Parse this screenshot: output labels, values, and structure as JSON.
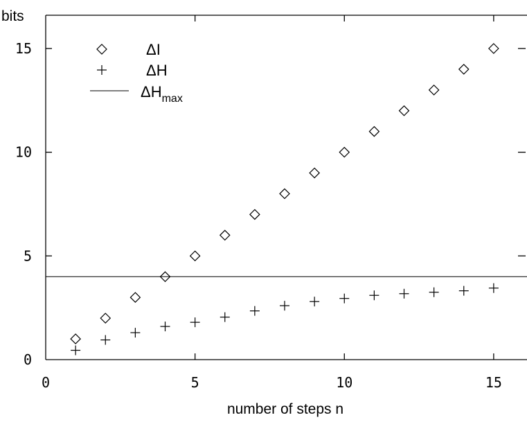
{
  "chart_data": {
    "type": "scatter",
    "ylabel": "bits",
    "xlabel": "number of steps n",
    "xlim": [
      0,
      16
    ],
    "ylim": [
      0,
      16.5
    ],
    "x_ticks": [
      {
        "value": 0,
        "label": "0"
      },
      {
        "value": 5,
        "label": "5"
      },
      {
        "value": 10,
        "label": "10"
      },
      {
        "value": 15,
        "label": "15"
      }
    ],
    "y_ticks": [
      {
        "value": 0,
        "label": "0"
      },
      {
        "value": 5,
        "label": "5"
      },
      {
        "value": 10,
        "label": "10"
      },
      {
        "value": 15,
        "label": "15"
      }
    ],
    "legend_position": "top-left",
    "series": [
      {
        "name": "ΔI",
        "marker": "diamond",
        "x": [
          1,
          2,
          3,
          4,
          5,
          6,
          7,
          8,
          9,
          10,
          11,
          12,
          13,
          14,
          15
        ],
        "y": [
          1,
          2,
          3,
          4,
          5,
          6,
          7,
          8,
          9,
          10,
          11,
          12,
          13,
          14,
          15
        ]
      },
      {
        "name": "ΔH",
        "marker": "plus",
        "x": [
          1,
          2,
          3,
          4,
          5,
          6,
          7,
          8,
          9,
          10,
          11,
          12,
          13,
          14,
          15
        ],
        "y": [
          0.45,
          0.95,
          1.3,
          1.6,
          1.8,
          2.05,
          2.35,
          2.6,
          2.8,
          2.95,
          3.1,
          3.18,
          3.25,
          3.32,
          3.45
        ]
      },
      {
        "name": "ΔHmax",
        "name_main": "ΔH",
        "name_sub": "max",
        "marker": "line",
        "y": 4
      }
    ]
  }
}
